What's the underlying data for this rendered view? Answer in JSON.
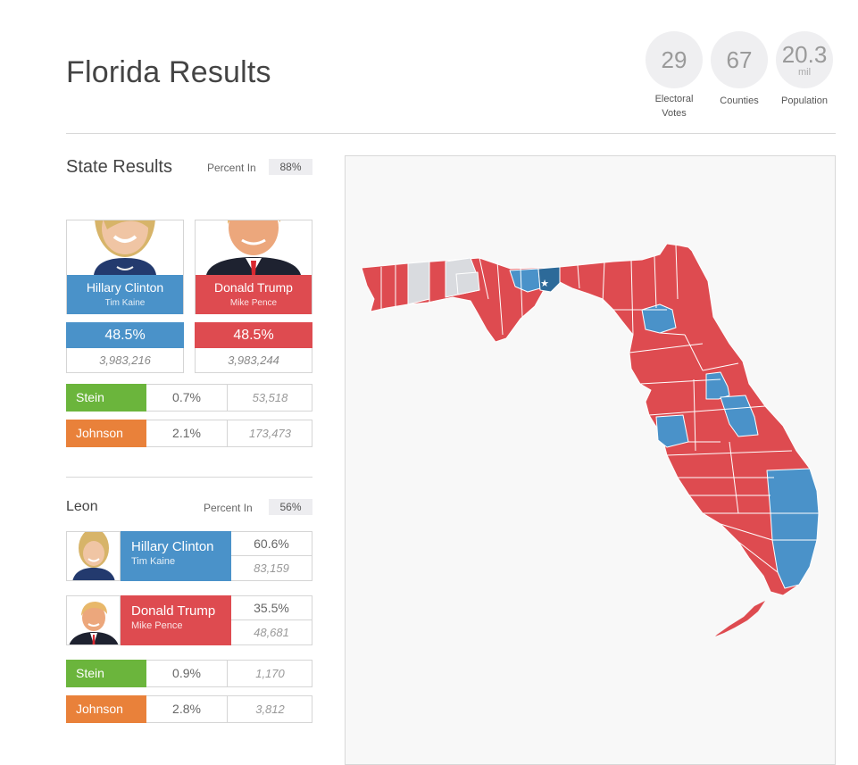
{
  "title": "Florida Results",
  "stats": [
    {
      "value": "29",
      "unit": "",
      "label_line1": "Electoral",
      "label_line2": "Votes"
    },
    {
      "value": "67",
      "unit": "",
      "label_line1": "Counties",
      "label_line2": ""
    },
    {
      "value": "20.3",
      "unit": "mil",
      "label_line1": "Population",
      "label_line2": ""
    }
  ],
  "state": {
    "heading": "State Results",
    "percent_in_label": "Percent In",
    "percent_in": "88%",
    "main": [
      {
        "name": "Hillary Clinton",
        "vp": "Tim Kaine",
        "pct": "48.5%",
        "votes": "3,983,216",
        "party": "dem"
      },
      {
        "name": "Donald Trump",
        "vp": "Mike Pence",
        "pct": "48.5%",
        "votes": "3,983,244",
        "party": "rep"
      }
    ],
    "minor": [
      {
        "name": "Stein",
        "pct": "0.7%",
        "votes": "53,518"
      },
      {
        "name": "Johnson",
        "pct": "2.1%",
        "votes": "173,473"
      }
    ]
  },
  "county": {
    "heading": "Leon",
    "percent_in_label": "Percent In",
    "percent_in": "56%",
    "main": [
      {
        "name": "Hillary Clinton",
        "vp": "Tim Kaine",
        "pct": "60.6%",
        "votes": "83,159"
      },
      {
        "name": "Donald Trump",
        "vp": "Mike Pence",
        "pct": "35.5%",
        "votes": "48,681"
      }
    ],
    "minor": [
      {
        "name": "Stein",
        "pct": "0.9%",
        "votes": "1,170"
      },
      {
        "name": "Johnson",
        "pct": "2.8%",
        "votes": "3,812"
      }
    ]
  },
  "map": {
    "selected_county_icon": "star-icon"
  },
  "colors": {
    "dem": "#4a92c9",
    "rep": "#de4b50",
    "green_party": "#6bb53c",
    "libertarian": "#e9813a",
    "no_data": "#d9dbdf",
    "selected": "#2d6a99"
  }
}
